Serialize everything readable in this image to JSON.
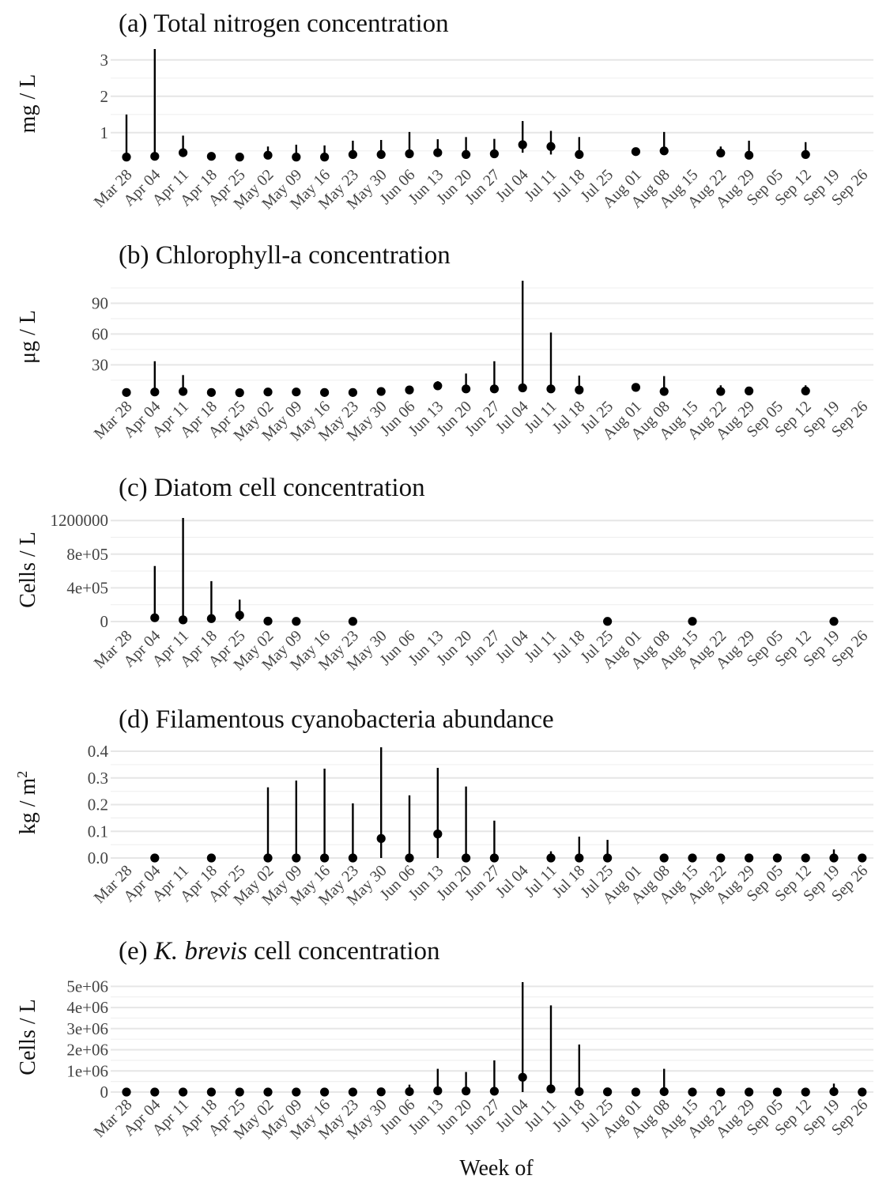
{
  "x_axis": {
    "label": "Week of",
    "categories": [
      "Mar 28",
      "Apr 04",
      "Apr 11",
      "Apr 18",
      "Apr 25",
      "May 02",
      "May 09",
      "May 16",
      "May 23",
      "May 30",
      "Jun 06",
      "Jun 13",
      "Jun 20",
      "Jun 27",
      "Jul 04",
      "Jul 11",
      "Jul 18",
      "Jul 25",
      "Aug 01",
      "Aug 08",
      "Aug 15",
      "Aug 22",
      "Aug 29",
      "Sep 05",
      "Sep 12",
      "Sep 19",
      "Sep 26"
    ]
  },
  "chart_data": [
    {
      "type": "scatter",
      "panel": "a",
      "title": "(a) Total nitrogen concentration",
      "ylabel": "mg / L",
      "ylim": [
        0.3,
        3.3
      ],
      "yticks": [
        {
          "v": 1,
          "label": "1"
        },
        {
          "v": 2,
          "label": "2"
        },
        {
          "v": 3,
          "label": "3"
        }
      ],
      "points": [
        {
          "x": "Mar 28",
          "y": 0.33,
          "lo": 0.3,
          "hi": 1.5
        },
        {
          "x": "Apr 04",
          "y": 0.35,
          "lo": 0.3,
          "hi": 3.3
        },
        {
          "x": "Apr 11",
          "y": 0.45,
          "lo": 0.4,
          "hi": 0.92
        },
        {
          "x": "Apr 18",
          "y": 0.35,
          "lo": 0.3,
          "hi": 0.45
        },
        {
          "x": "Apr 25",
          "y": 0.33,
          "lo": 0.3,
          "hi": 0.38
        },
        {
          "x": "May 02",
          "y": 0.38,
          "lo": 0.3,
          "hi": 0.62
        },
        {
          "x": "May 09",
          "y": 0.33,
          "lo": 0.3,
          "hi": 0.67
        },
        {
          "x": "May 16",
          "y": 0.33,
          "lo": 0.3,
          "hi": 0.65
        },
        {
          "x": "May 23",
          "y": 0.4,
          "lo": 0.35,
          "hi": 0.78
        },
        {
          "x": "May 30",
          "y": 0.4,
          "lo": 0.35,
          "hi": 0.8
        },
        {
          "x": "Jun 06",
          "y": 0.42,
          "lo": 0.35,
          "hi": 1.02
        },
        {
          "x": "Jun 13",
          "y": 0.45,
          "lo": 0.4,
          "hi": 0.82
        },
        {
          "x": "Jun 20",
          "y": 0.4,
          "lo": 0.35,
          "hi": 0.88
        },
        {
          "x": "Jun 27",
          "y": 0.42,
          "lo": 0.35,
          "hi": 0.83
        },
        {
          "x": "Jul 04",
          "y": 0.67,
          "lo": 0.45,
          "hi": 1.32
        },
        {
          "x": "Jul 11",
          "y": 0.62,
          "lo": 0.4,
          "hi": 1.05
        },
        {
          "x": "Jul 18",
          "y": 0.4,
          "lo": 0.35,
          "hi": 0.88
        },
        {
          "x": "Aug 01",
          "y": 0.48,
          "lo": 0.45,
          "hi": 0.52
        },
        {
          "x": "Aug 08",
          "y": 0.5,
          "lo": 0.4,
          "hi": 1.02
        },
        {
          "x": "Aug 22",
          "y": 0.44,
          "lo": 0.4,
          "hi": 0.62
        },
        {
          "x": "Aug 29",
          "y": 0.38,
          "lo": 0.35,
          "hi": 0.78
        },
        {
          "x": "Sep 12",
          "y": 0.4,
          "lo": 0.35,
          "hi": 0.74
        }
      ]
    },
    {
      "type": "scatter",
      "panel": "b",
      "title": "(b) Chlorophyll-a concentration",
      "ylabel": "μg / L",
      "ylim": [
        2.5,
        112
      ],
      "yticks": [
        {
          "v": 30,
          "label": "30"
        },
        {
          "v": 60,
          "label": "60"
        },
        {
          "v": 90,
          "label": "90"
        }
      ],
      "points": [
        {
          "x": "Mar 28",
          "y": 3,
          "lo": 2.5,
          "hi": 4
        },
        {
          "x": "Apr 04",
          "y": 3.5,
          "lo": 2.5,
          "hi": 33.5
        },
        {
          "x": "Apr 11",
          "y": 4,
          "lo": 2.5,
          "hi": 20
        },
        {
          "x": "Apr 18",
          "y": 3,
          "lo": 2.5,
          "hi": 4
        },
        {
          "x": "Apr 25",
          "y": 2.8,
          "lo": 2.5,
          "hi": 3.5
        },
        {
          "x": "May 02",
          "y": 3.5,
          "lo": 2.5,
          "hi": 7
        },
        {
          "x": "May 09",
          "y": 3.5,
          "lo": 2.5,
          "hi": 5
        },
        {
          "x": "May 16",
          "y": 3,
          "lo": 2.5,
          "hi": 4
        },
        {
          "x": "May 23",
          "y": 3,
          "lo": 2.5,
          "hi": 4
        },
        {
          "x": "May 30",
          "y": 4,
          "lo": 3,
          "hi": 6
        },
        {
          "x": "Jun 06",
          "y": 5.5,
          "lo": 4,
          "hi": 9
        },
        {
          "x": "Jun 13",
          "y": 9.5,
          "lo": 6,
          "hi": 14
        },
        {
          "x": "Jun 20",
          "y": 6.5,
          "lo": 4,
          "hi": 21.5
        },
        {
          "x": "Jun 27",
          "y": 6.5,
          "lo": 4,
          "hi": 33.5
        },
        {
          "x": "Jul 04",
          "y": 7.5,
          "lo": 4,
          "hi": 112
        },
        {
          "x": "Jul 11",
          "y": 6.5,
          "lo": 4,
          "hi": 61.5
        },
        {
          "x": "Jul 18",
          "y": 5.5,
          "lo": 3.5,
          "hi": 19.5
        },
        {
          "x": "Aug 01",
          "y": 8,
          "lo": 6,
          "hi": 10
        },
        {
          "x": "Aug 08",
          "y": 4,
          "lo": 2.5,
          "hi": 19
        },
        {
          "x": "Aug 22",
          "y": 4,
          "lo": 2.5,
          "hi": 10
        },
        {
          "x": "Aug 29",
          "y": 4.5,
          "lo": 3,
          "hi": 8.5
        },
        {
          "x": "Sep 12",
          "y": 4.5,
          "lo": 3,
          "hi": 10
        }
      ]
    },
    {
      "type": "scatter",
      "panel": "c",
      "title": "(c) Diatom cell concentration",
      "ylabel": "Cells / L",
      "ylim": [
        0,
        1230000
      ],
      "yticks": [
        {
          "v": 0,
          "label": "0"
        },
        {
          "v": 400000,
          "label": "4e+05"
        },
        {
          "v": 800000,
          "label": "8e+05"
        },
        {
          "v": 1200000,
          "label": "1200000"
        }
      ],
      "points": [
        {
          "x": "Apr 04",
          "y": 45000,
          "lo": 0,
          "hi": 660000
        },
        {
          "x": "Apr 11",
          "y": 20000,
          "lo": 0,
          "hi": 1230000
        },
        {
          "x": "Apr 18",
          "y": 35000,
          "lo": 0,
          "hi": 480000
        },
        {
          "x": "Apr 25",
          "y": 75000,
          "lo": 10000,
          "hi": 260000
        },
        {
          "x": "May 02",
          "y": 5000,
          "lo": 0,
          "hi": 20000
        },
        {
          "x": "May 09",
          "y": 2000,
          "lo": 0,
          "hi": 8000
        },
        {
          "x": "May 23",
          "y": 2000,
          "lo": 0,
          "hi": 5000
        },
        {
          "x": "Jul 25",
          "y": 2000,
          "lo": 0,
          "hi": 5000
        },
        {
          "x": "Aug 15",
          "y": 3000,
          "lo": 0,
          "hi": 15000
        },
        {
          "x": "Sep 19",
          "y": 2000,
          "lo": 0,
          "hi": 5000
        }
      ]
    },
    {
      "type": "scatter",
      "panel": "d",
      "title": "(d) Filamentous cyanobacteria abundance",
      "ylabel": "kg / m",
      "ylabel_sup": "2",
      "ylim": [
        0,
        0.415
      ],
      "yticks": [
        {
          "v": 0,
          "label": "0.0"
        },
        {
          "v": 0.1,
          "label": "0.1"
        },
        {
          "v": 0.2,
          "label": "0.2"
        },
        {
          "v": 0.3,
          "label": "0.3"
        },
        {
          "v": 0.4,
          "label": "0.4"
        }
      ],
      "points": [
        {
          "x": "Apr 04",
          "y": 0.0,
          "lo": 0,
          "hi": 0.003
        },
        {
          "x": "Apr 18",
          "y": 0.0,
          "lo": 0,
          "hi": 0.003
        },
        {
          "x": "May 02",
          "y": 0.0,
          "lo": 0,
          "hi": 0.265
        },
        {
          "x": "May 09",
          "y": 0.0,
          "lo": 0,
          "hi": 0.29
        },
        {
          "x": "May 16",
          "y": 0.0,
          "lo": 0,
          "hi": 0.335
        },
        {
          "x": "May 23",
          "y": 0.0,
          "lo": 0,
          "hi": 0.205
        },
        {
          "x": "May 30",
          "y": 0.073,
          "lo": 0,
          "hi": 0.415
        },
        {
          "x": "Jun 06",
          "y": 0.0,
          "lo": 0,
          "hi": 0.235
        },
        {
          "x": "Jun 13",
          "y": 0.09,
          "lo": 0,
          "hi": 0.338
        },
        {
          "x": "Jun 20",
          "y": 0.0,
          "lo": 0,
          "hi": 0.268
        },
        {
          "x": "Jun 27",
          "y": 0.0,
          "lo": 0,
          "hi": 0.14
        },
        {
          "x": "Jul 11",
          "y": 0.0,
          "lo": 0,
          "hi": 0.025
        },
        {
          "x": "Jul 18",
          "y": 0.0,
          "lo": 0,
          "hi": 0.08
        },
        {
          "x": "Jul 25",
          "y": 0.0,
          "lo": 0,
          "hi": 0.068
        },
        {
          "x": "Aug 08",
          "y": 0.0,
          "lo": 0,
          "hi": 0.003
        },
        {
          "x": "Aug 15",
          "y": 0.0,
          "lo": 0,
          "hi": 0.003
        },
        {
          "x": "Aug 22",
          "y": 0.0,
          "lo": 0,
          "hi": 0.003
        },
        {
          "x": "Aug 29",
          "y": 0.0,
          "lo": 0,
          "hi": 0.015
        },
        {
          "x": "Sep 05",
          "y": 0.0,
          "lo": 0,
          "hi": 0.003
        },
        {
          "x": "Sep 12",
          "y": 0.0,
          "lo": 0,
          "hi": 0.003
        },
        {
          "x": "Sep 19",
          "y": 0.0,
          "lo": 0,
          "hi": 0.032
        },
        {
          "x": "Sep 26",
          "y": 0.0,
          "lo": 0,
          "hi": 0.003
        }
      ]
    },
    {
      "type": "scatter",
      "panel": "e",
      "title_prefix": "(e) ",
      "title_italic": "K. brevis",
      "title_suffix": " cell concentration",
      "ylabel": "Cells / L",
      "ylim": [
        0,
        5200000
      ],
      "yticks": [
        {
          "v": 0,
          "label": "0"
        },
        {
          "v": 1000000,
          "label": "1e+06"
        },
        {
          "v": 2000000,
          "label": "2e+06"
        },
        {
          "v": 3000000,
          "label": "3e+06"
        },
        {
          "v": 4000000,
          "label": "4e+06"
        },
        {
          "v": 5000000,
          "label": "5e+06"
        }
      ],
      "points": [
        {
          "x": "Mar 28",
          "y": 0,
          "lo": 0,
          "hi": 10000
        },
        {
          "x": "Apr 04",
          "y": 0,
          "lo": 0,
          "hi": 10000
        },
        {
          "x": "Apr 11",
          "y": 0,
          "lo": 0,
          "hi": 10000
        },
        {
          "x": "Apr 18",
          "y": 0,
          "lo": 0,
          "hi": 10000
        },
        {
          "x": "Apr 25",
          "y": 0,
          "lo": 0,
          "hi": 10000
        },
        {
          "x": "May 02",
          "y": 0,
          "lo": 0,
          "hi": 10000
        },
        {
          "x": "May 09",
          "y": 0,
          "lo": 0,
          "hi": 10000
        },
        {
          "x": "May 16",
          "y": 0,
          "lo": 0,
          "hi": 10000
        },
        {
          "x": "May 23",
          "y": 0,
          "lo": 0,
          "hi": 10000
        },
        {
          "x": "May 30",
          "y": 10000,
          "lo": 0,
          "hi": 50000
        },
        {
          "x": "Jun 06",
          "y": 20000,
          "lo": 0,
          "hi": 350000
        },
        {
          "x": "Jun 13",
          "y": 60000,
          "lo": 0,
          "hi": 1100000
        },
        {
          "x": "Jun 20",
          "y": 50000,
          "lo": 0,
          "hi": 950000
        },
        {
          "x": "Jun 27",
          "y": 40000,
          "lo": 0,
          "hi": 1500000
        },
        {
          "x": "Jul 04",
          "y": 700000,
          "lo": 0,
          "hi": 5200000
        },
        {
          "x": "Jul 11",
          "y": 150000,
          "lo": 0,
          "hi": 4100000
        },
        {
          "x": "Jul 18",
          "y": 20000,
          "lo": 0,
          "hi": 2250000
        },
        {
          "x": "Jul 25",
          "y": 10000,
          "lo": 0,
          "hi": 150000
        },
        {
          "x": "Aug 01",
          "y": 0,
          "lo": 0,
          "hi": 10000
        },
        {
          "x": "Aug 08",
          "y": 20000,
          "lo": 0,
          "hi": 1100000
        },
        {
          "x": "Aug 15",
          "y": 0,
          "lo": 0,
          "hi": 10000
        },
        {
          "x": "Aug 22",
          "y": 0,
          "lo": 0,
          "hi": 10000
        },
        {
          "x": "Aug 29",
          "y": 0,
          "lo": 0,
          "hi": 10000
        },
        {
          "x": "Sep 05",
          "y": 0,
          "lo": 0,
          "hi": 10000
        },
        {
          "x": "Sep 12",
          "y": 0,
          "lo": 0,
          "hi": 10000
        },
        {
          "x": "Sep 19",
          "y": 20000,
          "lo": 0,
          "hi": 400000
        },
        {
          "x": "Sep 26",
          "y": 0,
          "lo": 0,
          "hi": 10000
        }
      ]
    }
  ]
}
